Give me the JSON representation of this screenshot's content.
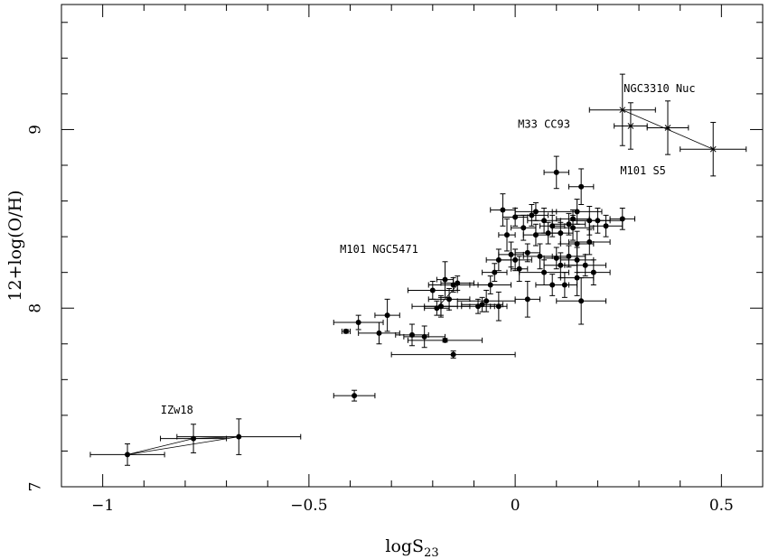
{
  "chart_data": {
    "type": "scatter",
    "title": "",
    "xlabel": "logS",
    "xlabel_sub": "23",
    "ylabel": "12+log(O/H)",
    "xlim": [
      -1.1,
      0.6
    ],
    "ylim": [
      7.0,
      9.7
    ],
    "x_ticks": [
      -1,
      -0.5,
      0,
      0.5
    ],
    "x_tick_labels": [
      "−1",
      "−0.5",
      "0",
      "0.5"
    ],
    "y_ticks": [
      7,
      8,
      9
    ],
    "y_tick_labels": [
      "7",
      "8",
      "9"
    ],
    "y_minor_step": 0.2,
    "x_minor_step": 0.1,
    "grid": false,
    "series": [
      {
        "marker": "filled-circle",
        "points": [
          {
            "x": -0.41,
            "y": 7.87,
            "xerr": 0.01,
            "yerr": 0.01
          },
          {
            "x": -0.38,
            "y": 7.92,
            "xerr": 0.06,
            "yerr": 0.04
          },
          {
            "x": -0.33,
            "y": 7.86,
            "xerr": 0.05,
            "yerr": 0.06
          },
          {
            "x": -0.31,
            "y": 7.96,
            "xerr": 0.03,
            "yerr": 0.09
          },
          {
            "x": -0.25,
            "y": 7.85,
            "xerr": 0.04,
            "yerr": 0.06
          },
          {
            "x": -0.22,
            "y": 7.84,
            "xerr": 0.05,
            "yerr": 0.06
          },
          {
            "x": -0.2,
            "y": 8.1,
            "xerr": 0.06,
            "yerr": 0.05
          },
          {
            "x": -0.19,
            "y": 8.0,
            "xerr": 0.03,
            "yerr": 0.04
          },
          {
            "x": -0.18,
            "y": 8.01,
            "xerr": 0.04,
            "yerr": 0.05
          },
          {
            "x": -0.18,
            "y": 8.01,
            "xerr": 0.07,
            "yerr": 0.06
          },
          {
            "x": -0.17,
            "y": 8.16,
            "xerr": 0.02,
            "yerr": 0.1
          },
          {
            "x": -0.17,
            "y": 7.82,
            "xerr": 0.09,
            "yerr": 0.01
          },
          {
            "x": -0.16,
            "y": 8.05,
            "xerr": 0.05,
            "yerr": 0.06
          },
          {
            "x": -0.15,
            "y": 8.13,
            "xerr": 0.06,
            "yerr": 0.04
          },
          {
            "x": -0.14,
            "y": 8.14,
            "xerr": 0.04,
            "yerr": 0.04
          },
          {
            "x": -0.15,
            "y": 7.74,
            "xerr": 0.15,
            "yerr": 0.02
          },
          {
            "x": -0.09,
            "y": 8.01,
            "xerr": 0.04,
            "yerr": 0.04
          },
          {
            "x": -0.08,
            "y": 8.02,
            "xerr": 0.05,
            "yerr": 0.04
          },
          {
            "x": -0.07,
            "y": 8.04,
            "xerr": 0.07,
            "yerr": 0.06
          },
          {
            "x": -0.06,
            "y": 8.13,
            "xerr": 0.05,
            "yerr": 0.05
          },
          {
            "x": -0.05,
            "y": 8.2,
            "xerr": 0.03,
            "yerr": 0.05
          },
          {
            "x": -0.04,
            "y": 8.27,
            "xerr": 0.03,
            "yerr": 0.06
          },
          {
            "x": -0.04,
            "y": 8.01,
            "xerr": 0.02,
            "yerr": 0.08
          },
          {
            "x": -0.03,
            "y": 8.55,
            "xerr": 0.03,
            "yerr": 0.09
          },
          {
            "x": -0.02,
            "y": 8.41,
            "xerr": 0.02,
            "yerr": 0.09
          },
          {
            "x": -0.01,
            "y": 8.3,
            "xerr": 0.03,
            "yerr": 0.07
          },
          {
            "x": 0.0,
            "y": 8.27,
            "xerr": 0.04,
            "yerr": 0.06
          },
          {
            "x": 0.0,
            "y": 8.51,
            "xerr": 0.03,
            "yerr": 0.05
          },
          {
            "x": 0.01,
            "y": 8.22,
            "xerr": 0.02,
            "yerr": 0.07
          },
          {
            "x": 0.02,
            "y": 8.45,
            "xerr": 0.03,
            "yerr": 0.07
          },
          {
            "x": 0.03,
            "y": 8.31,
            "xerr": 0.03,
            "yerr": 0.05
          },
          {
            "x": 0.03,
            "y": 8.05,
            "xerr": 0.03,
            "yerr": 0.1
          },
          {
            "x": 0.04,
            "y": 8.52,
            "xerr": 0.04,
            "yerr": 0.06
          },
          {
            "x": 0.05,
            "y": 8.54,
            "xerr": 0.05,
            "yerr": 0.05
          },
          {
            "x": 0.05,
            "y": 8.41,
            "xerr": 0.03,
            "yerr": 0.06
          },
          {
            "x": 0.06,
            "y": 8.29,
            "xerr": 0.04,
            "yerr": 0.07
          },
          {
            "x": 0.07,
            "y": 8.2,
            "xerr": 0.06,
            "yerr": 0.07
          },
          {
            "x": 0.07,
            "y": 8.49,
            "xerr": 0.04,
            "yerr": 0.07
          },
          {
            "x": 0.08,
            "y": 8.42,
            "xerr": 0.03,
            "yerr": 0.06
          },
          {
            "x": 0.09,
            "y": 8.13,
            "xerr": 0.04,
            "yerr": 0.06
          },
          {
            "x": 0.09,
            "y": 8.46,
            "xerr": 0.03,
            "yerr": 0.06
          },
          {
            "x": 0.1,
            "y": 8.28,
            "xerr": 0.03,
            "yerr": 0.06
          },
          {
            "x": 0.1,
            "y": 8.76,
            "xerr": 0.03,
            "yerr": 0.09
          },
          {
            "x": 0.11,
            "y": 8.24,
            "xerr": 0.04,
            "yerr": 0.07
          },
          {
            "x": 0.11,
            "y": 8.42,
            "xerr": 0.03,
            "yerr": 0.06
          },
          {
            "x": 0.12,
            "y": 8.13,
            "xerr": 0.03,
            "yerr": 0.07
          },
          {
            "x": 0.13,
            "y": 8.29,
            "xerr": 0.04,
            "yerr": 0.06
          },
          {
            "x": 0.13,
            "y": 8.47,
            "xerr": 0.04,
            "yerr": 0.06
          },
          {
            "x": 0.14,
            "y": 8.5,
            "xerr": 0.04,
            "yerr": 0.05
          },
          {
            "x": 0.14,
            "y": 8.45,
            "xerr": 0.05,
            "yerr": 0.07
          },
          {
            "x": 0.15,
            "y": 8.17,
            "xerr": 0.04,
            "yerr": 0.1
          },
          {
            "x": 0.15,
            "y": 8.27,
            "xerr": 0.04,
            "yerr": 0.07
          },
          {
            "x": 0.15,
            "y": 8.36,
            "xerr": 0.04,
            "yerr": 0.07
          },
          {
            "x": 0.15,
            "y": 8.54,
            "xerr": 0.06,
            "yerr": 0.07
          },
          {
            "x": 0.16,
            "y": 8.68,
            "xerr": 0.03,
            "yerr": 0.1
          },
          {
            "x": 0.16,
            "y": 8.04,
            "xerr": 0.06,
            "yerr": 0.13
          },
          {
            "x": 0.17,
            "y": 8.24,
            "xerr": 0.05,
            "yerr": 0.06
          },
          {
            "x": 0.18,
            "y": 8.49,
            "xerr": 0.05,
            "yerr": 0.08
          },
          {
            "x": 0.18,
            "y": 8.37,
            "xerr": 0.05,
            "yerr": 0.07
          },
          {
            "x": 0.19,
            "y": 8.2,
            "xerr": 0.04,
            "yerr": 0.07
          },
          {
            "x": 0.2,
            "y": 8.49,
            "xerr": 0.06,
            "yerr": 0.07
          },
          {
            "x": 0.22,
            "y": 8.46,
            "xerr": 0.04,
            "yerr": 0.06
          },
          {
            "x": 0.26,
            "y": 8.5,
            "xerr": 0.03,
            "yerr": 0.06
          },
          {
            "x": -0.39,
            "y": 7.51,
            "xerr": 0.05,
            "yerr": 0.03
          }
        ]
      },
      {
        "marker": "filled-circle",
        "points": [
          {
            "x": -0.94,
            "y": 7.18,
            "xerr": 0.09,
            "yerr": 0.06
          },
          {
            "x": -0.78,
            "y": 7.27,
            "xerr": 0.08,
            "yerr": 0.08
          },
          {
            "x": -0.67,
            "y": 7.28,
            "xerr": 0.15,
            "yerr": 0.1
          }
        ]
      },
      {
        "marker": "cross",
        "points": [
          {
            "x": 0.26,
            "y": 9.11,
            "xerr": 0.08,
            "yerr": 0.2
          },
          {
            "x": 0.28,
            "y": 9.02,
            "xerr": 0.04,
            "yerr": 0.13
          },
          {
            "x": 0.37,
            "y": 9.01,
            "xerr": 0.05,
            "yerr": 0.15
          },
          {
            "x": 0.48,
            "y": 8.89,
            "xerr": 0.08,
            "yerr": 0.15
          }
        ]
      }
    ],
    "connecting_lines": [
      [
        [
          -0.94,
          7.18
        ],
        [
          -0.78,
          7.27
        ],
        [
          -0.67,
          7.28
        ],
        [
          -0.94,
          7.18
        ]
      ],
      [
        [
          0.26,
          9.11
        ],
        [
          0.48,
          8.89
        ]
      ],
      [
        [
          -0.19,
          8.0
        ],
        [
          -0.14,
          8.13
        ],
        [
          -0.06,
          8.13
        ]
      ]
    ],
    "annotations": [
      {
        "text": "IZw18",
        "x": -0.82,
        "y": 7.41
      },
      {
        "text": "M101 NGC5471",
        "x": -0.33,
        "y": 8.31
      },
      {
        "text": "NGC3310 Nuc",
        "x": 0.35,
        "y": 9.21
      },
      {
        "text": "M33 CC93",
        "x": 0.07,
        "y": 9.01
      },
      {
        "text": "M101 S5",
        "x": 0.31,
        "y": 8.75
      }
    ]
  }
}
